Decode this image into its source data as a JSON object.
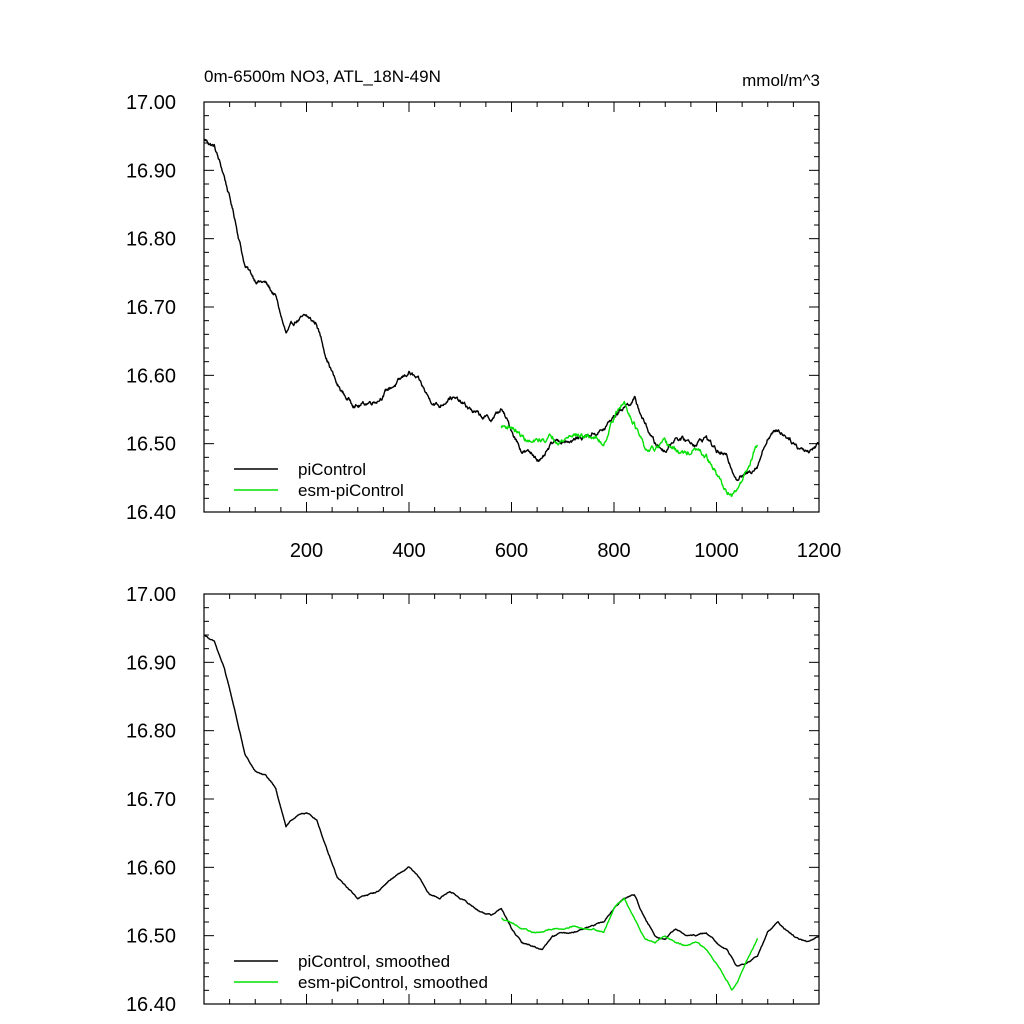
{
  "chart_data": [
    {
      "type": "line",
      "title": "0m-6500m NO3, ATL_18N-49N",
      "units": "mmol/m^3",
      "xlabel": "",
      "ylabel": "",
      "xlim": [
        0,
        1200
      ],
      "ylim": [
        16.4,
        17.0
      ],
      "x_ticks": [
        200,
        400,
        600,
        800,
        1000,
        1200
      ],
      "x_tick_labels": [
        "200",
        "400",
        "600",
        "800",
        "1000",
        "1200"
      ],
      "y_ticks": [
        16.4,
        16.5,
        16.6,
        16.7,
        16.8,
        16.9,
        17.0
      ],
      "y_tick_labels": [
        "16.40",
        "16.50",
        "16.60",
        "16.70",
        "16.80",
        "16.90",
        "17.00"
      ],
      "legend_position": "bottom-left",
      "series": [
        {
          "name": "piControl",
          "color": "#000000",
          "x": [
            1,
            20,
            40,
            60,
            80,
            100,
            120,
            140,
            160,
            180,
            200,
            220,
            240,
            260,
            280,
            300,
            320,
            340,
            360,
            380,
            400,
            420,
            440,
            460,
            480,
            500,
            520,
            540,
            560,
            580,
            600,
            620,
            640,
            660,
            680,
            700,
            720,
            740,
            760,
            780,
            800,
            820,
            840,
            860,
            880,
            900,
            920,
            940,
            960,
            980,
            1000,
            1020,
            1040,
            1060,
            1080,
            1100,
            1120,
            1140,
            1160,
            1180,
            1200
          ],
          "y": [
            16.945,
            16.935,
            16.89,
            16.83,
            16.76,
            16.74,
            16.735,
            16.715,
            16.66,
            16.68,
            16.685,
            16.675,
            16.625,
            16.585,
            16.565,
            16.555,
            16.56,
            16.565,
            16.58,
            16.59,
            16.605,
            16.59,
            16.565,
            16.555,
            16.57,
            16.56,
            16.55,
            16.54,
            16.535,
            16.55,
            16.52,
            16.49,
            16.485,
            16.475,
            16.5,
            16.505,
            16.505,
            16.51,
            16.515,
            16.52,
            16.54,
            16.555,
            16.565,
            16.53,
            16.5,
            16.49,
            16.51,
            16.505,
            16.5,
            16.51,
            16.49,
            16.48,
            16.45,
            16.455,
            16.47,
            16.51,
            16.52,
            16.51,
            16.495,
            16.49,
            16.5
          ],
          "noise": 0.0045
        },
        {
          "name": "esm-piControl",
          "color": "#00e000",
          "x": [
            580,
            600,
            620,
            640,
            660,
            680,
            700,
            720,
            740,
            760,
            780,
            800,
            820,
            840,
            860,
            880,
            900,
            920,
            940,
            960,
            980,
            1000,
            1020,
            1030,
            1040,
            1060,
            1080
          ],
          "y": [
            16.525,
            16.525,
            16.51,
            16.5,
            16.505,
            16.51,
            16.505,
            16.515,
            16.51,
            16.51,
            16.5,
            16.54,
            16.56,
            16.53,
            16.49,
            16.49,
            16.5,
            16.49,
            16.485,
            16.49,
            16.48,
            16.455,
            16.43,
            16.42,
            16.43,
            16.465,
            16.5
          ],
          "noise": 0.005
        }
      ]
    },
    {
      "type": "line",
      "title": "",
      "xlabel": "",
      "ylabel": "",
      "xlim": [
        0,
        1200
      ],
      "ylim": [
        16.4,
        17.0
      ],
      "y_ticks": [
        16.4,
        16.5,
        16.6,
        16.7,
        16.8,
        16.9,
        17.0
      ],
      "y_tick_labels": [
        "16.40",
        "16.50",
        "16.60",
        "16.70",
        "16.80",
        "16.90",
        "17.00"
      ],
      "legend_position": "bottom-left",
      "series": [
        {
          "name": "piControl, smoothed",
          "color": "#000000",
          "x": [
            1,
            20,
            40,
            60,
            80,
            100,
            120,
            140,
            160,
            180,
            200,
            220,
            240,
            260,
            280,
            300,
            320,
            340,
            360,
            380,
            400,
            420,
            440,
            460,
            480,
            500,
            520,
            540,
            560,
            580,
            600,
            620,
            640,
            660,
            680,
            700,
            720,
            740,
            760,
            780,
            800,
            820,
            840,
            860,
            880,
            900,
            920,
            940,
            960,
            980,
            1000,
            1020,
            1040,
            1060,
            1080,
            1100,
            1120,
            1140,
            1160,
            1180,
            1200
          ],
          "y": [
            16.94,
            16.93,
            16.89,
            16.83,
            16.765,
            16.74,
            16.735,
            16.715,
            16.66,
            16.675,
            16.68,
            16.67,
            16.625,
            16.585,
            16.57,
            16.555,
            16.56,
            16.565,
            16.58,
            16.59,
            16.6,
            16.585,
            16.56,
            16.555,
            16.565,
            16.555,
            16.545,
            16.535,
            16.53,
            16.54,
            16.51,
            16.49,
            16.485,
            16.48,
            16.5,
            16.505,
            16.505,
            16.51,
            16.515,
            16.52,
            16.54,
            16.555,
            16.56,
            16.525,
            16.5,
            16.495,
            16.51,
            16.5,
            16.5,
            16.505,
            16.49,
            16.48,
            16.455,
            16.46,
            16.47,
            16.505,
            16.52,
            16.505,
            16.495,
            16.49,
            16.5
          ],
          "noise": 0.0012
        },
        {
          "name": "esm-piControl, smoothed",
          "color": "#00e000",
          "x": [
            580,
            600,
            620,
            640,
            660,
            680,
            700,
            720,
            740,
            760,
            780,
            800,
            820,
            840,
            860,
            880,
            900,
            920,
            940,
            960,
            980,
            1000,
            1020,
            1030,
            1040,
            1060,
            1080
          ],
          "y": [
            16.525,
            16.52,
            16.51,
            16.505,
            16.505,
            16.51,
            16.51,
            16.515,
            16.51,
            16.51,
            16.505,
            16.54,
            16.555,
            16.525,
            16.495,
            16.49,
            16.5,
            16.49,
            16.485,
            16.49,
            16.48,
            16.46,
            16.435,
            16.42,
            16.43,
            16.465,
            16.495
          ],
          "noise": 0.0012
        }
      ]
    }
  ]
}
